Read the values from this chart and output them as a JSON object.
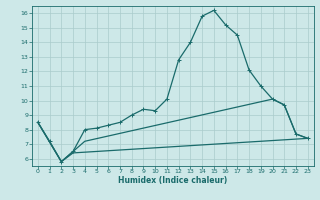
{
  "xlabel": "Humidex (Indice chaleur)",
  "bg_color": "#cde8e8",
  "grid_color": "#aacccc",
  "line_color": "#1a6b6b",
  "xlim": [
    -0.5,
    23.5
  ],
  "ylim": [
    5.5,
    16.5
  ],
  "xticks": [
    0,
    1,
    2,
    3,
    4,
    5,
    6,
    7,
    8,
    9,
    10,
    11,
    12,
    13,
    14,
    15,
    16,
    17,
    18,
    19,
    20,
    21,
    22,
    23
  ],
  "yticks": [
    6,
    7,
    8,
    9,
    10,
    11,
    12,
    13,
    14,
    15,
    16
  ],
  "line1_x": [
    0,
    1,
    2,
    3,
    4,
    5,
    6,
    7,
    8,
    9,
    10,
    11,
    12,
    13,
    14,
    15,
    16,
    17,
    18,
    19,
    20,
    21,
    22,
    23
  ],
  "line1_y": [
    8.5,
    7.2,
    5.8,
    6.5,
    8.0,
    8.1,
    8.3,
    8.5,
    9.0,
    9.4,
    9.3,
    10.1,
    12.8,
    14.0,
    15.8,
    16.2,
    15.2,
    14.5,
    12.1,
    11.0,
    10.1,
    9.7,
    7.7,
    7.4
  ],
  "line2_x": [
    0,
    2,
    3,
    4,
    20,
    21,
    22,
    23
  ],
  "line2_y": [
    8.5,
    5.8,
    6.5,
    7.2,
    10.1,
    9.7,
    7.7,
    7.4
  ],
  "line3_x": [
    0,
    2,
    3,
    23
  ],
  "line3_y": [
    8.5,
    5.8,
    6.4,
    7.4
  ]
}
